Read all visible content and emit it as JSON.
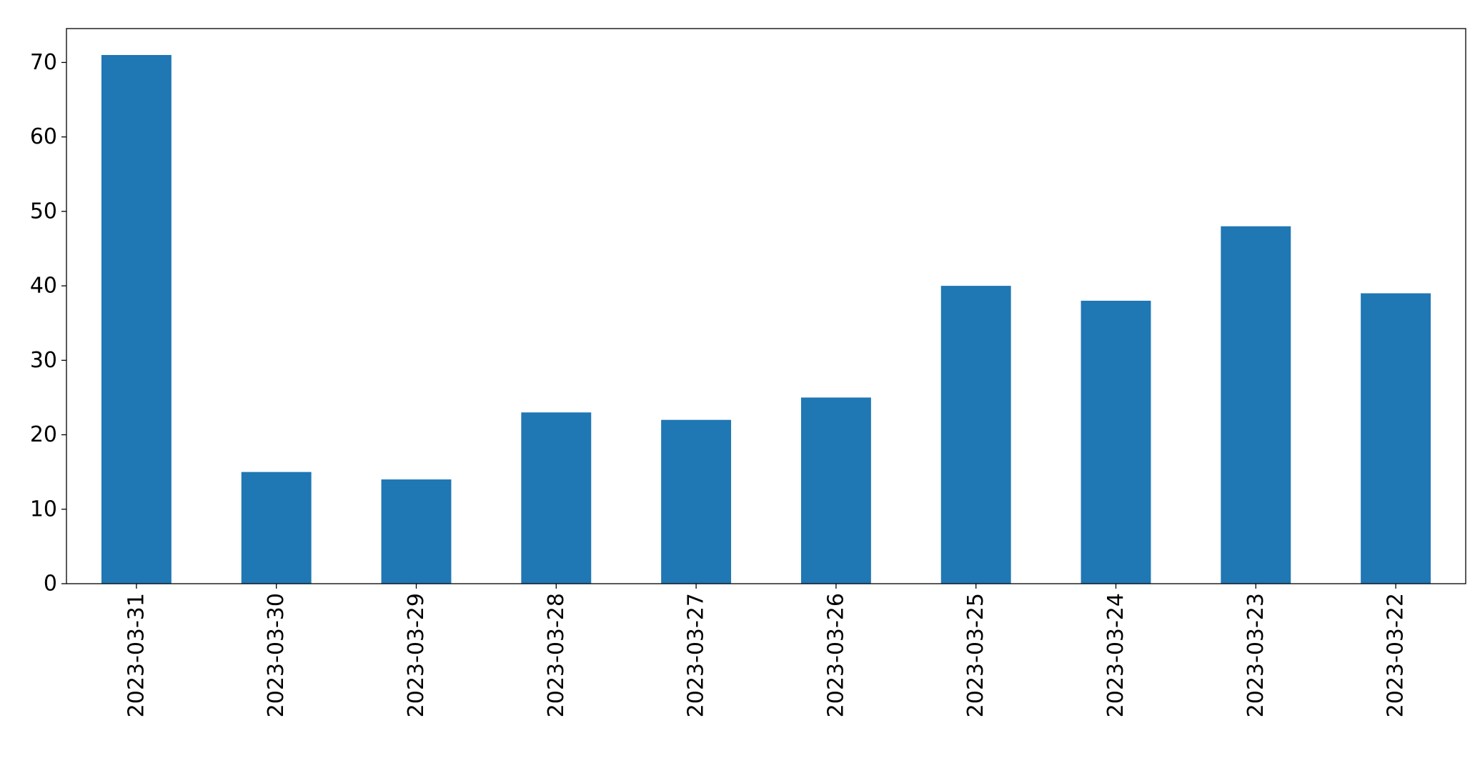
{
  "chart_data": {
    "type": "bar",
    "categories": [
      "2023-03-31",
      "2023-03-30",
      "2023-03-29",
      "2023-03-28",
      "2023-03-27",
      "2023-03-26",
      "2023-03-25",
      "2023-03-24",
      "2023-03-23",
      "2023-03-22"
    ],
    "values": [
      71,
      15,
      14,
      23,
      22,
      25,
      40,
      38,
      48,
      39
    ],
    "color": "#1f77b4",
    "ylim": [
      0,
      74.55
    ],
    "yticks": [
      0,
      10,
      20,
      30,
      40,
      50,
      60,
      70
    ],
    "grid": false
  }
}
